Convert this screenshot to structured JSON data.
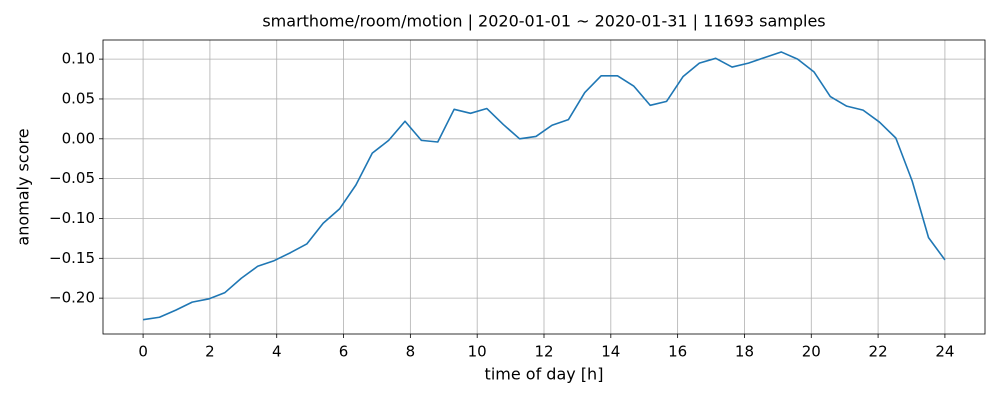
{
  "chart_data": {
    "type": "line",
    "title": "smarthome/room/motion | 2020-01-01 ~ 2020-01-31 | 11693 samples",
    "x_label": "time of day [h]",
    "y_label": "anomaly score",
    "x": [
      0,
      0.49,
      0.98,
      1.47,
      1.96,
      2.45,
      2.94,
      3.43,
      3.92,
      4.41,
      4.9,
      5.39,
      5.88,
      6.37,
      6.86,
      7.35,
      7.84,
      8.33,
      8.82,
      9.31,
      9.8,
      10.29,
      10.78,
      11.27,
      11.76,
      12.24,
      12.73,
      13.22,
      13.71,
      14.2,
      14.69,
      15.18,
      15.67,
      16.16,
      16.65,
      17.14,
      17.63,
      18.12,
      18.61,
      19.1,
      19.59,
      20.08,
      20.57,
      21.06,
      21.55,
      22.04,
      22.53,
      23.02,
      23.51,
      24
    ],
    "series": [
      {
        "color": "#1f77b4",
        "values": [
          -0.227,
          -0.224,
          -0.215,
          -0.205,
          -0.201,
          -0.193,
          -0.175,
          -0.16,
          -0.153,
          -0.143,
          -0.132,
          -0.106,
          -0.088,
          -0.058,
          -0.018,
          -0.002,
          0.022,
          -0.002,
          -0.004,
          0.037,
          0.032,
          0.038,
          0.018,
          0.0,
          0.003,
          0.017,
          0.024,
          0.058,
          0.079,
          0.079,
          0.066,
          0.042,
          0.047,
          0.078,
          0.095,
          0.101,
          0.09,
          0.095,
          0.102,
          0.109,
          0.1,
          0.084,
          0.053,
          0.041,
          0.036,
          0.021,
          0.001,
          -0.053,
          -0.124,
          -0.152
        ]
      }
    ],
    "xlim": [
      -1.2,
      25.2
    ],
    "ylim": [
      -0.245,
      0.124
    ],
    "xticks": [
      0,
      2,
      4,
      6,
      8,
      10,
      12,
      14,
      16,
      18,
      20,
      22,
      24
    ],
    "yticks": [
      {
        "value": -0.2,
        "label": "−0.20"
      },
      {
        "value": -0.15,
        "label": "−0.15"
      },
      {
        "value": -0.1,
        "label": "−0.10"
      },
      {
        "value": -0.05,
        "label": "−0.05"
      },
      {
        "value": 0,
        "label": "0.00"
      },
      {
        "value": 0.05,
        "label": "0.05"
      },
      {
        "value": 0.1,
        "label": "0.10"
      }
    ],
    "grid": true
  }
}
